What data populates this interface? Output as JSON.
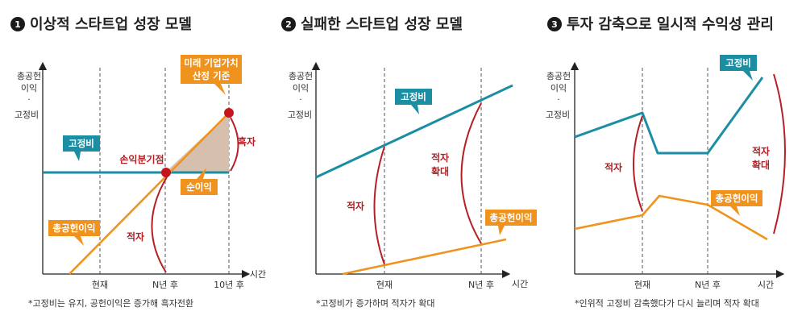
{
  "panels": [
    {
      "number": "1",
      "title": "이상적 스타트업 성장 모델",
      "y_label_1": "총공헌",
      "y_label_2": "이익",
      "y_label_3": "·",
      "y_label_4": "고정비",
      "x_label": "시간",
      "ticks": [
        "현재",
        "N년 후",
        "10년 후"
      ],
      "fixed_cost_label": "고정비",
      "contribution_label": "총공헌이익",
      "breakeven_label": "손익분기점",
      "valuation_label_1": "미래 기업가치",
      "valuation_label_2": "산정 기준",
      "surplus_label": "흑자",
      "net_profit_label": "순이익",
      "deficit_label": "적자",
      "note": "*고정비는 유지, 공헌이익은 증가해 흑자전환"
    },
    {
      "number": "2",
      "title": "실패한 스타트업 성장 모델",
      "y_label_1": "총공헌",
      "y_label_2": "이익",
      "y_label_3": "·",
      "y_label_4": "고정비",
      "x_label": "시간",
      "ticks": [
        "현재",
        "N년 후"
      ],
      "fixed_cost_label": "고정비",
      "contribution_label": "총공헌이익",
      "deficit_label": "적자",
      "deficit_expand_1": "적자",
      "deficit_expand_2": "확대",
      "note": "*고정비가 증가하며 적자가 확대"
    },
    {
      "number": "3",
      "title": "투자 감축으로 일시적 수익성 관리",
      "y_label_1": "총공헌",
      "y_label_2": "이익",
      "y_label_3": "·",
      "y_label_4": "고정비",
      "x_label": "시간",
      "ticks": [
        "현재",
        "N년 후"
      ],
      "fixed_cost_label": "고정비",
      "contribution_label": "총공헌이익",
      "deficit_label": "적자",
      "deficit_expand_1": "적자",
      "deficit_expand_2": "확대",
      "note": "*인위적 고정비 감축했다가 다시 늘리며 적자 확대"
    }
  ],
  "colors": {
    "fixed_cost": "#1b8ea3",
    "contribution": "#f0931e",
    "deficit": "#b52025",
    "profit_area": "#d6c0ad"
  }
}
